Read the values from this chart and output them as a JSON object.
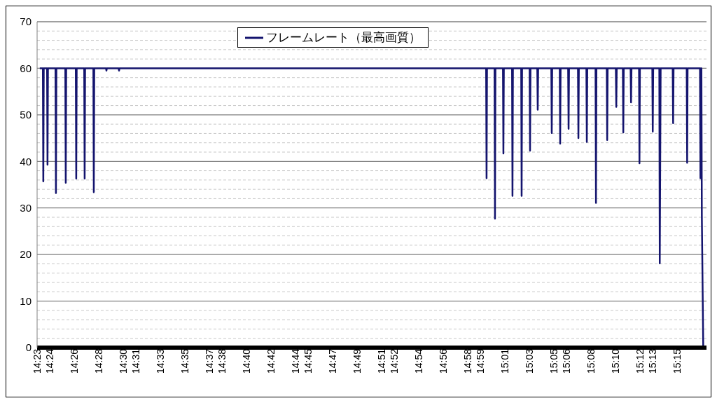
{
  "chart_data": {
    "type": "line",
    "legend": "top left",
    "grid": "y",
    "marker": "none",
    "line_style": "solid",
    "ylim": [
      0,
      70
    ],
    "yticks": [
      0,
      10,
      20,
      30,
      40,
      50,
      60,
      70
    ],
    "xlim": [
      14.3833,
      15.29
    ],
    "xticks": [
      {
        "value": 14.3833,
        "label": "14:23"
      },
      {
        "value": 14.4,
        "label": "14:24"
      },
      {
        "value": 14.4333,
        "label": "14:26"
      },
      {
        "value": 14.4667,
        "label": "14:28"
      },
      {
        "value": 14.5,
        "label": "14:30"
      },
      {
        "value": 14.5167,
        "label": "14:31"
      },
      {
        "value": 14.55,
        "label": "14:33"
      },
      {
        "value": 14.5833,
        "label": "14:35"
      },
      {
        "value": 14.6167,
        "label": "14:37"
      },
      {
        "value": 14.6333,
        "label": "14:38"
      },
      {
        "value": 14.6667,
        "label": "14:40"
      },
      {
        "value": 14.7,
        "label": "14:42"
      },
      {
        "value": 14.7333,
        "label": "14:44"
      },
      {
        "value": 14.75,
        "label": "14:45"
      },
      {
        "value": 14.7833,
        "label": "14:47"
      },
      {
        "value": 14.8167,
        "label": "14:49"
      },
      {
        "value": 14.85,
        "label": "14:51"
      },
      {
        "value": 14.8667,
        "label": "14:52"
      },
      {
        "value": 14.9,
        "label": "14:54"
      },
      {
        "value": 14.9333,
        "label": "14:56"
      },
      {
        "value": 14.9667,
        "label": "14:58"
      },
      {
        "value": 14.9833,
        "label": "14:59"
      },
      {
        "value": 15.0167,
        "label": "15:01"
      },
      {
        "value": 15.05,
        "label": "15:03"
      },
      {
        "value": 15.0833,
        "label": "15:05"
      },
      {
        "value": 15.1,
        "label": "15:06"
      },
      {
        "value": 15.1333,
        "label": "15:08"
      },
      {
        "value": 15.1667,
        "label": "15:10"
      },
      {
        "value": 15.2,
        "label": "15:12"
      },
      {
        "value": 15.2167,
        "label": "15:13"
      },
      {
        "value": 15.25,
        "label": "15:15"
      }
    ],
    "series": [
      {
        "name": "フレームレート（最高画質）",
        "color": "#14146e",
        "x": [
          14.3869,
          14.3911,
          14.3917,
          14.3923,
          14.3968,
          14.3974,
          14.398,
          14.4082,
          14.4088,
          14.4094,
          14.4215,
          14.4221,
          14.4227,
          14.4357,
          14.4363,
          14.4369,
          14.4471,
          14.4477,
          14.4483,
          14.4595,
          14.4601,
          14.4607,
          14.4766,
          14.4772,
          14.4778,
          14.4937,
          14.4943,
          14.4949,
          14.9915,
          14.9921,
          14.9927,
          15.0029,
          15.0035,
          15.0041,
          15.0143,
          15.0149,
          15.0155,
          15.0266,
          15.0272,
          15.0278,
          15.039,
          15.0396,
          15.0402,
          15.0504,
          15.051,
          15.0516,
          15.0608,
          15.0614,
          15.062,
          15.0798,
          15.0804,
          15.081,
          15.0912,
          15.0918,
          15.0924,
          15.1026,
          15.1032,
          15.1038,
          15.1159,
          15.1165,
          15.1171,
          15.1273,
          15.1279,
          15.1285,
          15.1397,
          15.1403,
          15.1409,
          15.1549,
          15.1555,
          15.1561,
          15.1672,
          15.1678,
          15.1684,
          15.1767,
          15.1773,
          15.1779,
          15.1872,
          15.1878,
          15.1884,
          15.1986,
          15.1992,
          15.1998,
          15.2166,
          15.2172,
          15.2178,
          15.2261,
          15.2267,
          15.2279,
          15.2442,
          15.2448,
          15.2454,
          15.2632,
          15.2638,
          15.2644,
          15.2812,
          15.2818,
          15.2824,
          15.2831,
          15.2837,
          15.2856
        ],
        "values": [
          60,
          60,
          35.7,
          60,
          60,
          39.3,
          60,
          60,
          33.2,
          60,
          60,
          35.4,
          60,
          60,
          36.3,
          60,
          60,
          36.3,
          60,
          60,
          33.4,
          60,
          60,
          59.5,
          60,
          60,
          59.5,
          60,
          60,
          36.4,
          60,
          60,
          27.7,
          60,
          60,
          41.7,
          60,
          60,
          32.6,
          60,
          60,
          32.6,
          60,
          60,
          42.3,
          60,
          60,
          51.1,
          60,
          60,
          46.1,
          60,
          60,
          43.8,
          60,
          60,
          47,
          60,
          60,
          45,
          60,
          60,
          44.2,
          60,
          60,
          31.1,
          60,
          60,
          44.6,
          60,
          60,
          51.7,
          60,
          60,
          46.2,
          60,
          60,
          52.7,
          60,
          60,
          39.6,
          60,
          60,
          46.4,
          60,
          60,
          18.1,
          60,
          60,
          48.2,
          60,
          60,
          39.7,
          60,
          60,
          36.4,
          60,
          60,
          28.3,
          0
        ]
      }
    ]
  }
}
